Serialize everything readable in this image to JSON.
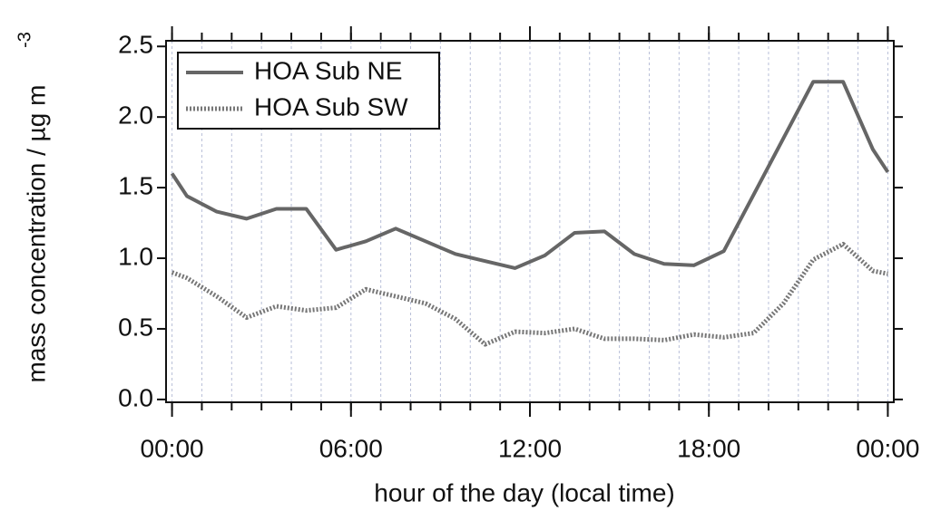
{
  "chart_data": {
    "type": "line",
    "xlabel": "hour of the day (local time)",
    "ylabel": "mass concentration / µg m",
    "ylabel_superscript": "-3",
    "x": [
      0,
      0.5,
      1.5,
      2.5,
      3.5,
      4.5,
      5.5,
      6.5,
      7.5,
      8.5,
      9.5,
      10.5,
      11.5,
      12.5,
      13.5,
      14.5,
      15.5,
      16.5,
      17.5,
      18.5,
      19.5,
      20.5,
      21.5,
      22.5,
      23.5,
      24
    ],
    "series": [
      {
        "name": "HOA Sub NE",
        "color": "#666666",
        "line_style": "solid",
        "values": [
          1.6,
          1.44,
          1.33,
          1.28,
          1.35,
          1.35,
          1.06,
          1.12,
          1.21,
          1.12,
          1.03,
          0.98,
          0.93,
          1.02,
          1.18,
          1.19,
          1.03,
          0.96,
          0.95,
          1.05,
          1.45,
          1.85,
          2.25,
          2.25,
          1.77,
          1.61
        ]
      },
      {
        "name": "HOA Sub SW",
        "color": "#777777",
        "line_style": "dotted",
        "values": [
          0.9,
          0.86,
          0.73,
          0.58,
          0.66,
          0.63,
          0.65,
          0.78,
          0.73,
          0.68,
          0.57,
          0.39,
          0.48,
          0.47,
          0.5,
          0.43,
          0.43,
          0.42,
          0.46,
          0.44,
          0.47,
          0.68,
          0.99,
          1.1,
          0.91,
          0.89
        ]
      }
    ],
    "xlim": [
      -0.2,
      24.2
    ],
    "xticks": [
      {
        "value": 0,
        "label": "00:00"
      },
      {
        "value": 6,
        "label": "06:00"
      },
      {
        "value": 12,
        "label": "12:00"
      },
      {
        "value": 18,
        "label": "18:00"
      },
      {
        "value": 24,
        "label": "00:00"
      }
    ],
    "x_minor_ticks": [
      0,
      1,
      2,
      3,
      4,
      5,
      6,
      7,
      8,
      9,
      10,
      11,
      12,
      13,
      14,
      15,
      16,
      17,
      18,
      19,
      20,
      21,
      22,
      23,
      24
    ],
    "ylim": [
      -0.02,
      2.54
    ],
    "yticks": [
      {
        "value": 0,
        "label": "0.0"
      },
      {
        "value": 0.5,
        "label": "0.5"
      },
      {
        "value": 1,
        "label": "1.0"
      },
      {
        "value": 1.5,
        "label": "1.5"
      },
      {
        "value": 2,
        "label": "2.0"
      },
      {
        "value": 2.5,
        "label": "2.5"
      }
    ],
    "grid": true,
    "legend": "upper left"
  }
}
